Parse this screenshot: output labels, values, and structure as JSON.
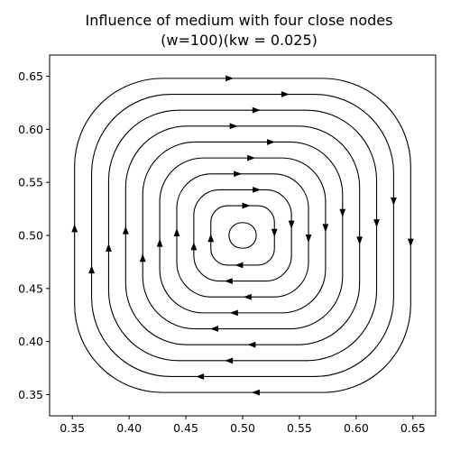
{
  "chart_data": {
    "type": "streamplot",
    "title_line1": "Influence of medium with four close nodes",
    "title_line2": "(w=100)(kw = 0.025)",
    "xlabel": "",
    "ylabel": "",
    "xlim": [
      0.33,
      0.67
    ],
    "ylim": [
      0.33,
      0.67
    ],
    "xticks": [
      0.35,
      0.4,
      0.45,
      0.5,
      0.55,
      0.6,
      0.65
    ],
    "xtick_labels": [
      "0.35",
      "0.40",
      "0.45",
      "0.50",
      "0.55",
      "0.60",
      "0.65"
    ],
    "yticks": [
      0.35,
      0.4,
      0.45,
      0.5,
      0.55,
      0.6,
      0.65
    ],
    "ytick_labels": [
      "0.35",
      "0.40",
      "0.45",
      "0.50",
      "0.55",
      "0.60",
      "0.65"
    ],
    "grid": false,
    "line_color": "#000000",
    "circulation": "clockwise",
    "center": [
      0.5,
      0.5
    ],
    "loop_half_widths": [
      0.012,
      0.028,
      0.043,
      0.058,
      0.073,
      0.088,
      0.103,
      0.118,
      0.133,
      0.148
    ]
  }
}
